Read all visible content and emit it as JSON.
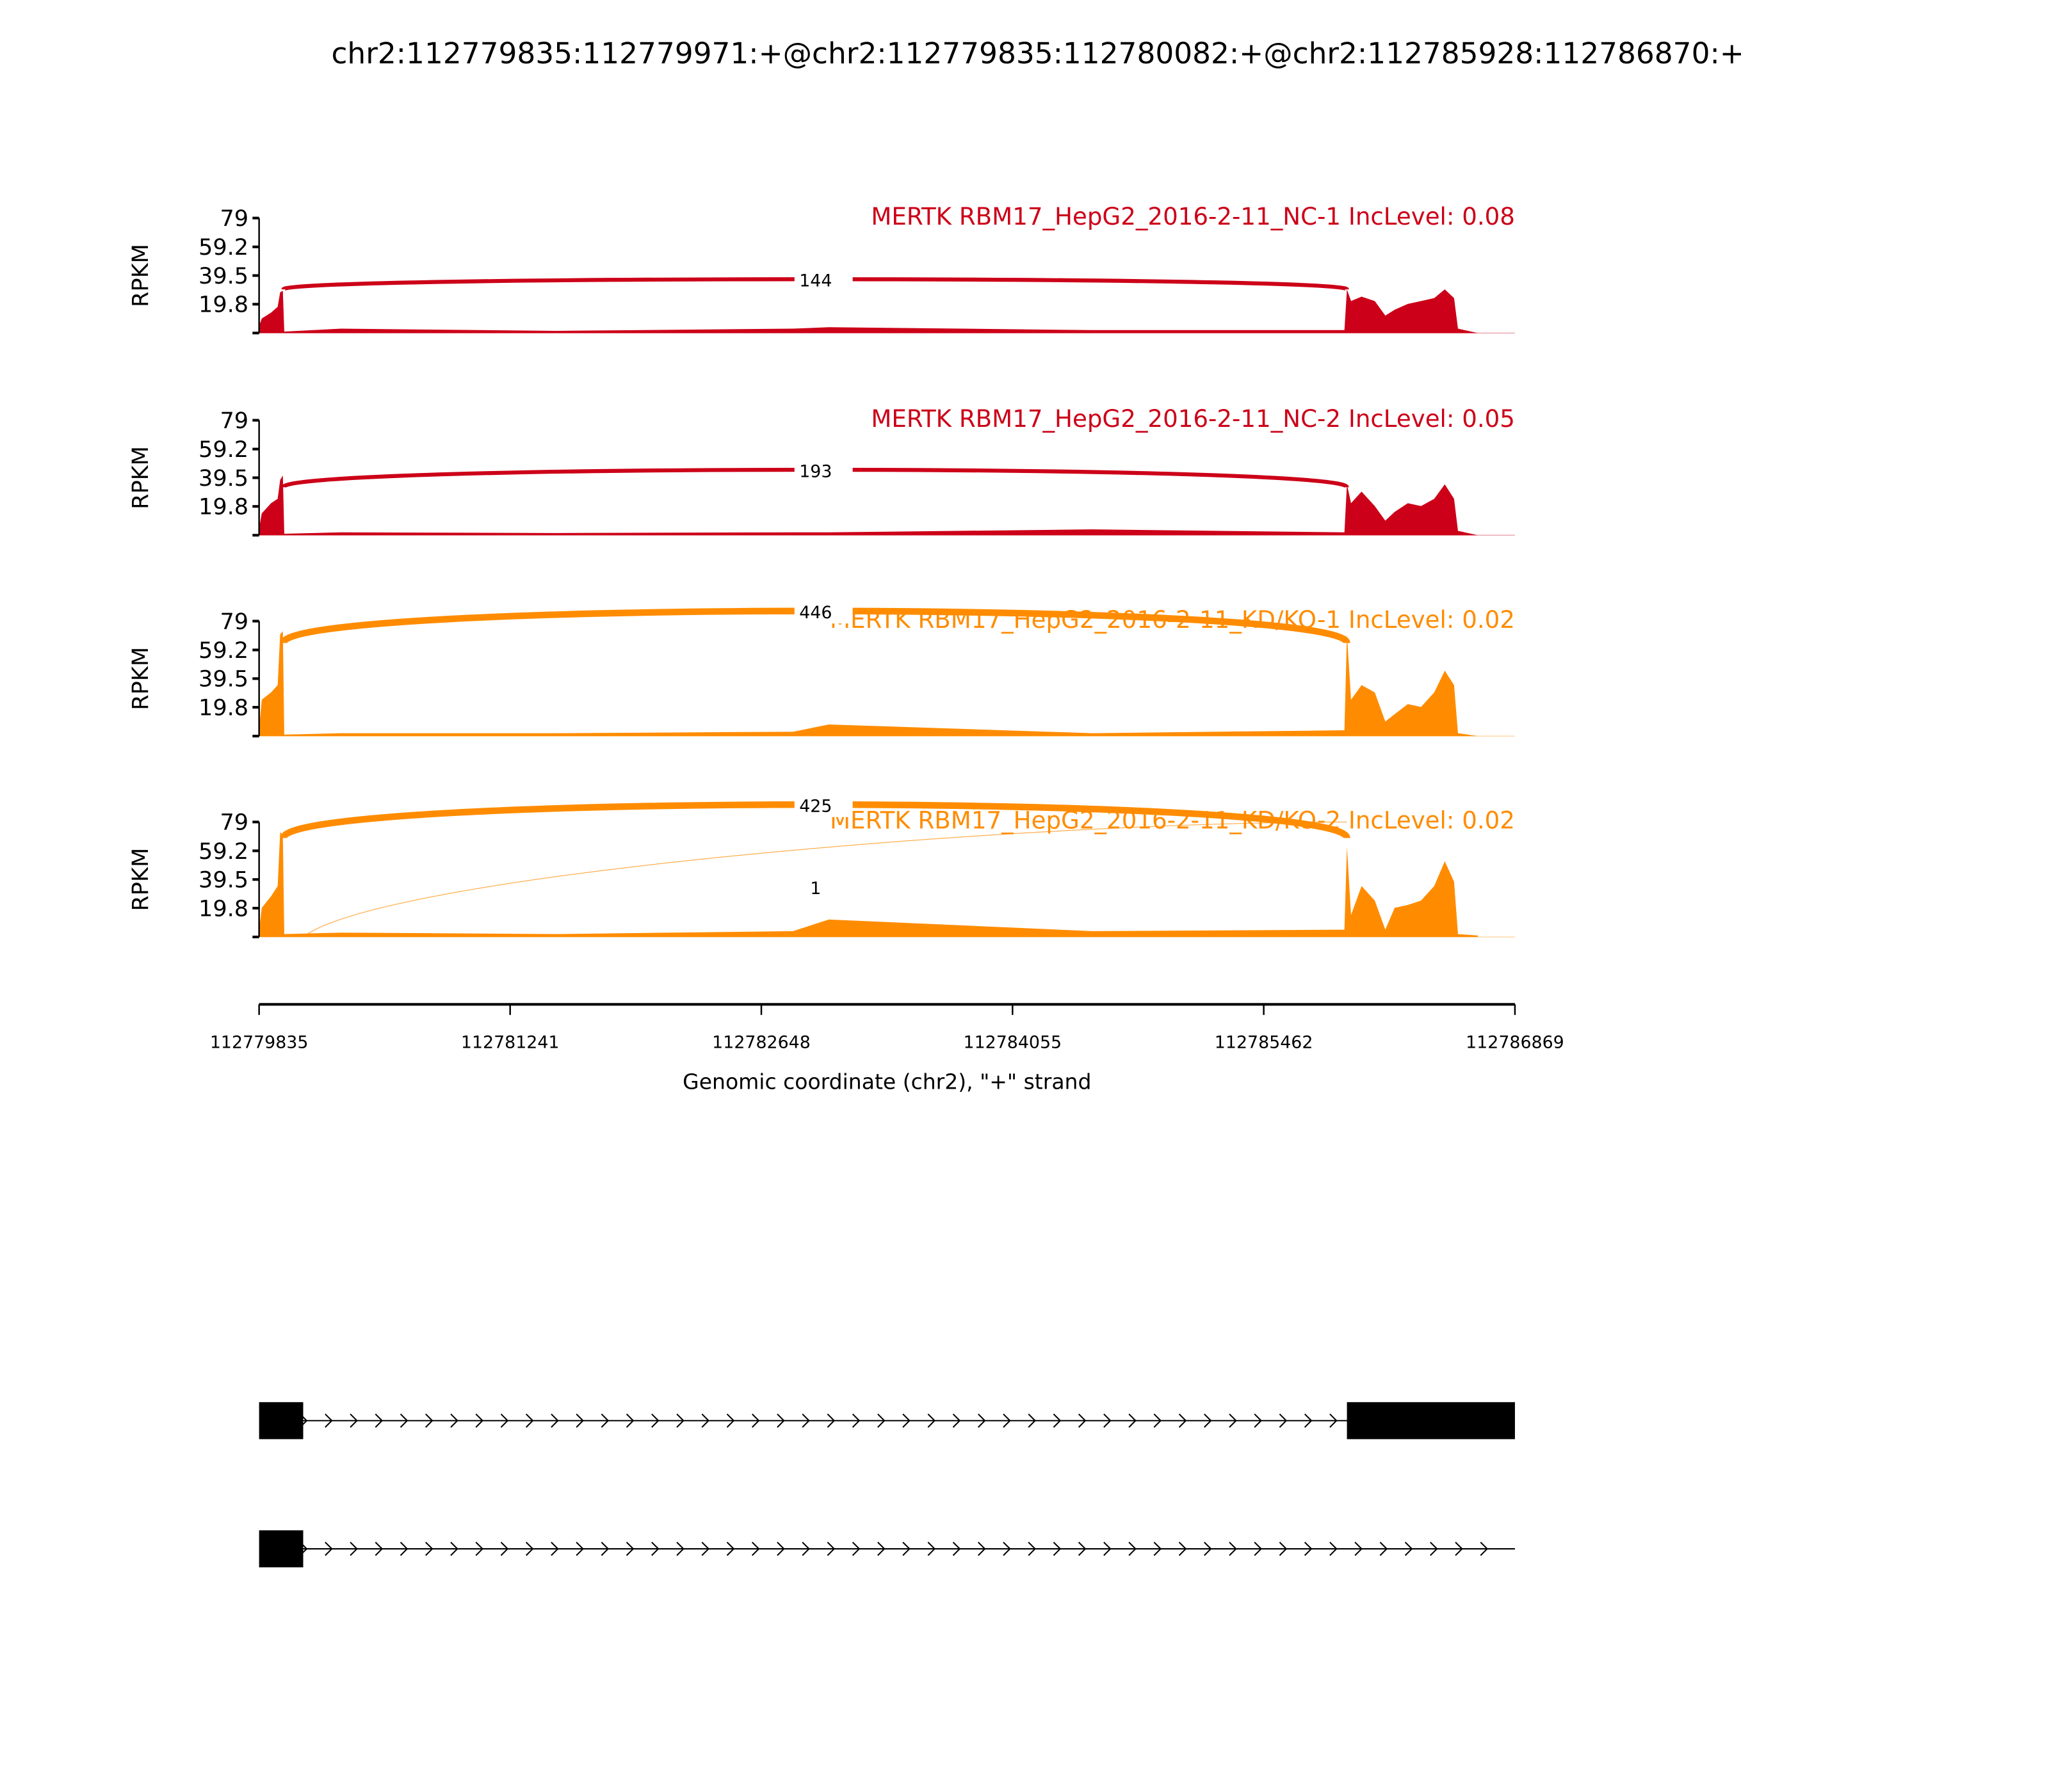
{
  "chart_data": {
    "type": "area",
    "title": "chr2:112779835:112779971:+@chr2:112779835:112780082:+@chr2:112785928:112786870:+",
    "xlabel": "Genomic coordinate (chr2), \"+\" strand",
    "xlim": [
      112779835,
      112786869
    ],
    "xticks": [
      "112779835",
      "112781241",
      "112782648",
      "112784055",
      "112785462",
      "112786869"
    ],
    "ylabel": "RPKM",
    "ylim": [
      0,
      79
    ],
    "yticks": [
      "79",
      "59.2",
      "39.5",
      "19.8"
    ],
    "coverage_x": [
      112779835,
      112779850,
      112779902,
      112779939,
      112779953,
      112779968,
      112779976,
      112780294,
      112781500,
      112782826,
      112783026,
      112784500,
      112785914,
      112785928,
      112785951,
      112786010,
      112786084,
      112786143,
      112786195,
      112786269,
      112786343,
      112786417,
      112786476,
      112786528,
      112786550,
      112786661
    ],
    "panels": [
      {
        "label": "MERTK RBM17_HepG2_2016-2-11_NC-1 IncLevel: 0.08",
        "color": "#CC0018",
        "coverage": [
          5,
          10,
          14,
          18,
          28,
          29,
          1,
          3,
          1.5,
          3,
          4,
          2,
          2,
          30,
          22,
          25,
          22,
          12,
          16,
          20,
          22,
          24,
          30,
          24,
          3,
          0
        ],
        "junctions": [
          {
            "count": "144",
            "start": 112779971,
            "end": 112785928,
            "start_height": 30,
            "end_height": 30,
            "peak": 37,
            "width": 3
          }
        ]
      },
      {
        "label": "MERTK RBM17_HepG2_2016-2-11_NC-2 IncLevel: 0.05",
        "color": "#CC0018",
        "coverage": [
          5,
          15,
          22,
          25,
          38,
          41,
          1,
          2,
          1.5,
          2,
          2,
          4,
          2,
          35,
          22,
          30,
          20,
          10,
          16,
          22,
          20,
          25,
          35,
          25,
          3,
          0
        ],
        "junctions": [
          {
            "count": "193",
            "start": 112779971,
            "end": 112785928,
            "start_height": 33,
            "end_height": 33,
            "peak": 45,
            "width": 3
          }
        ]
      },
      {
        "label": "MERTK RBM17_HepG2_2016-2-11_KD/KO-1 IncLevel: 0.02",
        "color": "#FF8C00",
        "coverage": [
          5,
          25,
          30,
          35,
          70,
          72,
          1,
          2,
          2,
          3,
          8,
          2,
          4,
          70,
          25,
          35,
          30,
          10,
          15,
          22,
          20,
          30,
          45,
          35,
          2,
          0
        ],
        "junctions": [
          {
            "count": "446",
            "start": 112779971,
            "end": 112785928,
            "start_height": 64,
            "end_height": 64,
            "peak": 86,
            "width": 5
          }
        ]
      },
      {
        "label": "MERTK RBM17_HepG2_2016-2-11_KD/KO-2 IncLevel: 0.02",
        "color": "#FF8C00",
        "coverage": [
          5,
          20,
          28,
          35,
          72,
          70,
          2,
          3,
          2,
          4,
          12,
          4,
          5,
          62,
          15,
          35,
          25,
          5,
          20,
          22,
          25,
          35,
          52,
          38,
          2,
          1
        ],
        "junctions": [
          {
            "count": "425",
            "start": 112779971,
            "end": 112785928,
            "start_height": 68,
            "end_height": 68,
            "peak": 91,
            "width": 5
          },
          {
            "count": "1",
            "start": 112780082,
            "end": 112785928,
            "start_height": 0,
            "end_height": 79,
            "peak": 79,
            "width": 0.6,
            "arc": "rising"
          }
        ]
      }
    ],
    "transcripts": [
      {
        "exons": [
          [
            112779835,
            112780082
          ],
          [
            112785928,
            112786869
          ]
        ],
        "line_end": 112786869,
        "arrow_end": 112786000
      },
      {
        "exons": [
          [
            112779835,
            112780082
          ]
        ],
        "line_end": 112786869,
        "arrow_end": 112786869
      }
    ]
  }
}
